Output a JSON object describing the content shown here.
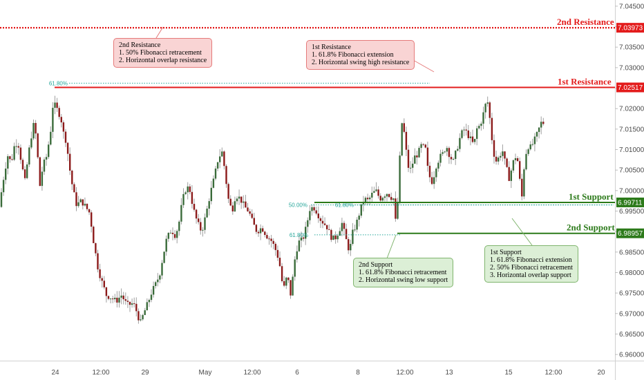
{
  "colors": {
    "resistance": "#e31b1b",
    "support": "#2c7a1a",
    "fib": "#26a69a",
    "candle_up": "#3a6b3a",
    "candle_down": "#8b1a1a",
    "wick": "#9e9e9e",
    "tag_red": "#e31b1b",
    "tag_green": "#2c7a1a"
  },
  "levels": {
    "r2": {
      "title": "2nd Resistance",
      "price": 7.03973,
      "tag": "7.03973",
      "style": "dotted-bold"
    },
    "r1": {
      "title": "1st Resistance",
      "price": 7.02517,
      "tag": "7.02517",
      "style": "solid"
    },
    "s1": {
      "title": "1st Support",
      "price": 6.99711,
      "tag": "6.99711",
      "style": "solid"
    },
    "s2": {
      "title": "2nd Support",
      "price": 6.98957,
      "tag": "6.98957",
      "style": "solid"
    }
  },
  "fib_labels": [
    {
      "text": "61.80%",
      "price": 7.0262
    },
    {
      "text": "50.00%",
      "price": 6.9965
    },
    {
      "text": "61.80%",
      "price": 6.9965
    },
    {
      "text": "61.80%",
      "price": 6.9892
    }
  ],
  "callouts": {
    "r2": {
      "lines": [
        "2nd Resistance",
        "1. 50% Fibonacci retracement",
        "2. Horizontal overlap resistance"
      ]
    },
    "r1": {
      "lines": [
        "1st Resistance",
        "1. 61.8% Fibonacci extension",
        "2. Horizontal swing high resistance"
      ]
    },
    "s2": {
      "lines": [
        "2nd Support",
        "1. 61.8% Fibonacci retracement",
        "2. Horizontal swing low support"
      ]
    },
    "s1": {
      "lines": [
        "1st Support",
        "1. 61.8% Fibonacci extension",
        "2. 50% Fibonacci retracement",
        "3. Horizontal overlap support"
      ]
    }
  },
  "chart_data": {
    "type": "candlestick",
    "title": "",
    "ylim": [
      6.9585,
      7.0465
    ],
    "y_ticks": [
      "7.04500",
      "7.04000",
      "7.03500",
      "7.03000",
      "7.02500",
      "7.02000",
      "7.01500",
      "7.01000",
      "7.00500",
      "7.00000",
      "6.99500",
      "6.99000",
      "6.98500",
      "6.98000",
      "6.97500",
      "6.97000",
      "6.96500",
      "6.96000"
    ],
    "x_ticks": [
      "24",
      "12:00",
      "29",
      "May",
      "12:00",
      "6",
      "8",
      "12:00",
      "13",
      "15",
      "12:00",
      "20"
    ],
    "price_path": [
      [
        0,
        6.996
      ],
      [
        4,
        6.9995
      ],
      [
        9,
        7.005
      ],
      [
        14,
        7.009
      ],
      [
        18,
        7.0065
      ],
      [
        23,
        7.011
      ],
      [
        28,
        7.012
      ],
      [
        34,
        7.006
      ],
      [
        38,
        7.002
      ],
      [
        43,
        7.0085
      ],
      [
        47,
        7.013
      ],
      [
        52,
        7.017
      ],
      [
        57,
        7.0075
      ],
      [
        60,
        7.001
      ],
      [
        64,
        7.006
      ],
      [
        69,
        7.008
      ],
      [
        75,
        7.014
      ],
      [
        79,
        7.0215
      ],
      [
        84,
        7.02
      ],
      [
        90,
        7.018
      ],
      [
        94,
        7.014
      ],
      [
        98,
        7.012
      ],
      [
        104,
        7.004
      ],
      [
        108,
        7.0
      ],
      [
        113,
        6.9965
      ],
      [
        120,
        6.9975
      ],
      [
        126,
        6.996
      ],
      [
        132,
        6.9945
      ],
      [
        138,
        6.987
      ],
      [
        144,
        6.981
      ],
      [
        150,
        6.9775
      ],
      [
        156,
        6.9745
      ],
      [
        162,
        6.974
      ],
      [
        170,
        6.973
      ],
      [
        178,
        6.9745
      ],
      [
        186,
        6.972
      ],
      [
        195,
        6.9725
      ],
      [
        201,
        6.97
      ],
      [
        205,
        6.9675
      ],
      [
        210,
        6.97
      ],
      [
        216,
        6.9725
      ],
      [
        221,
        6.975
      ],
      [
        227,
        6.977
      ],
      [
        233,
        6.9795
      ],
      [
        238,
        6.984
      ],
      [
        243,
        6.988
      ],
      [
        250,
        6.9905
      ],
      [
        256,
        6.989
      ],
      [
        261,
        6.992
      ],
      [
        266,
        6.9975
      ],
      [
        272,
        7.001
      ],
      [
        277,
        7.0
      ],
      [
        282,
        6.9955
      ],
      [
        288,
        6.992
      ],
      [
        294,
        6.99
      ],
      [
        300,
        6.994
      ],
      [
        306,
        6.999
      ],
      [
        312,
        7.003
      ],
      [
        318,
        7.008
      ],
      [
        324,
        7.0095
      ],
      [
        328,
        7.004
      ],
      [
        333,
        6.9975
      ],
      [
        338,
        6.995
      ],
      [
        343,
        6.999
      ],
      [
        350,
        6.998
      ],
      [
        356,
        6.996
      ],
      [
        362,
        6.995
      ],
      [
        368,
        6.992
      ],
      [
        374,
        6.99
      ],
      [
        381,
        6.991
      ],
      [
        388,
        6.989
      ],
      [
        394,
        6.988
      ],
      [
        400,
        6.986
      ],
      [
        406,
        6.983
      ],
      [
        410,
        6.978
      ],
      [
        414,
        6.976
      ],
      [
        418,
        6.98
      ],
      [
        422,
        6.974
      ],
      [
        426,
        6.979
      ],
      [
        430,
        6.985
      ],
      [
        435,
        6.9875
      ],
      [
        440,
        6.988
      ],
      [
        446,
        6.9915
      ],
      [
        450,
        6.9955
      ],
      [
        456,
        6.996
      ],
      [
        460,
        6.995
      ],
      [
        466,
        6.993
      ],
      [
        471,
        6.992
      ],
      [
        476,
        6.991
      ],
      [
        480,
        6.989
      ],
      [
        486,
        6.988
      ],
      [
        492,
        6.99
      ],
      [
        497,
        6.992
      ],
      [
        503,
        6.988
      ],
      [
        508,
        6.985
      ],
      [
        512,
        6.9895
      ],
      [
        518,
        6.992
      ],
      [
        523,
        6.995
      ],
      [
        529,
        6.998
      ],
      [
        535,
        6.9975
      ],
      [
        540,
        6.999
      ],
      [
        546,
        7.0
      ],
      [
        552,
        6.998
      ],
      [
        558,
        6.999
      ],
      [
        563,
        6.9995
      ],
      [
        567,
        6.9985
      ],
      [
        572,
        6.998
      ],
      [
        575,
        6.9915
      ],
      [
        578,
        6.998
      ],
      [
        581,
        7.009
      ],
      [
        584,
        7.017
      ],
      [
        588,
        7.013
      ],
      [
        592,
        7.006
      ],
      [
        597,
        7.005
      ],
      [
        601,
        7.008
      ],
      [
        607,
        7.009
      ],
      [
        612,
        7.011
      ],
      [
        618,
        7.01
      ],
      [
        622,
        7.004
      ],
      [
        628,
        7.002
      ],
      [
        633,
        7.006
      ],
      [
        638,
        7.008
      ],
      [
        643,
        7.009
      ],
      [
        648,
        7.011
      ],
      [
        653,
        7.0085
      ],
      [
        658,
        7.007
      ],
      [
        663,
        7.01
      ],
      [
        668,
        7.013
      ],
      [
        673,
        7.015
      ],
      [
        678,
        7.014
      ],
      [
        683,
        7.0125
      ],
      [
        688,
        7.011
      ],
      [
        692,
        7.015
      ],
      [
        697,
        7.016
      ],
      [
        702,
        7.019
      ],
      [
        707,
        7.0225
      ],
      [
        711,
        7.0175
      ],
      [
        715,
        7.011
      ],
      [
        719,
        7.007
      ],
      [
        724,
        7.008
      ],
      [
        729,
        7.01
      ],
      [
        734,
        7.006
      ],
      [
        739,
        7.003
      ],
      [
        745,
        7.007
      ],
      [
        750,
        7.009
      ],
      [
        754,
        7.003
      ],
      [
        757,
        6.9975
      ],
      [
        760,
        7.005
      ],
      [
        765,
        7.011
      ],
      [
        770,
        7.0105
      ],
      [
        775,
        7.012
      ],
      [
        780,
        7.014
      ],
      [
        785,
        7.0165
      ]
    ]
  }
}
